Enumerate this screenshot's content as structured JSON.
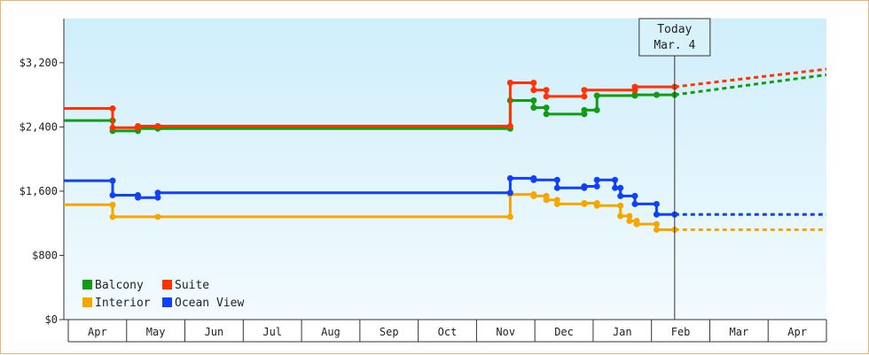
{
  "chart_data": {
    "type": "line",
    "y_ticks": [
      "$0",
      "$800",
      "$1,600",
      "$2,400",
      "$3,200"
    ],
    "y_tick_values": [
      0,
      800,
      1600,
      2400,
      3200
    ],
    "ylim": [
      0,
      3750
    ],
    "x_months": [
      "Apr",
      "May",
      "Jun",
      "Jul",
      "Aug",
      "Sep",
      "Oct",
      "Nov",
      "Dec",
      "Jan",
      "Feb",
      "Mar",
      "Apr"
    ],
    "xlim_days": [
      0,
      422
    ],
    "today": {
      "line1": "Today",
      "line2": "Mar. 4",
      "day": 338
    },
    "legend": [
      "Balcony",
      "Suite",
      "Interior",
      "Ocean View"
    ],
    "legend_position": "bottom-left",
    "colors": {
      "Balcony": "#129c12",
      "Suite": "#ff3300",
      "Interior": "#f5a700",
      "Ocean View": "#1040ff"
    },
    "series": [
      {
        "name": "Balcony",
        "points": [
          [
            0,
            2480
          ],
          [
            27,
            2480
          ],
          [
            27,
            2350
          ],
          [
            41,
            2350
          ],
          [
            41,
            2380
          ],
          [
            52,
            2380
          ],
          [
            247,
            2380
          ],
          [
            247,
            2730
          ],
          [
            260,
            2730
          ],
          [
            260,
            2640
          ],
          [
            267,
            2640
          ],
          [
            267,
            2560
          ],
          [
            288,
            2560
          ],
          [
            288,
            2610
          ],
          [
            295,
            2610
          ],
          [
            295,
            2790
          ],
          [
            316,
            2790
          ],
          [
            316,
            2800
          ],
          [
            328,
            2800
          ],
          [
            338,
            2800
          ]
        ],
        "forecast": [
          [
            338,
            2800
          ],
          [
            422,
            3050
          ]
        ]
      },
      {
        "name": "Suite",
        "points": [
          [
            0,
            2630
          ],
          [
            27,
            2630
          ],
          [
            27,
            2390
          ],
          [
            41,
            2390
          ],
          [
            41,
            2410
          ],
          [
            52,
            2410
          ],
          [
            247,
            2410
          ],
          [
            247,
            2950
          ],
          [
            260,
            2950
          ],
          [
            260,
            2860
          ],
          [
            267,
            2860
          ],
          [
            267,
            2780
          ],
          [
            288,
            2780
          ],
          [
            288,
            2860
          ],
          [
            316,
            2860
          ],
          [
            316,
            2900
          ],
          [
            338,
            2900
          ]
        ],
        "forecast": [
          [
            338,
            2900
          ],
          [
            422,
            3120
          ]
        ]
      },
      {
        "name": "Interior",
        "points": [
          [
            0,
            1430
          ],
          [
            27,
            1430
          ],
          [
            27,
            1280
          ],
          [
            52,
            1280
          ],
          [
            247,
            1280
          ],
          [
            247,
            1560
          ],
          [
            260,
            1560
          ],
          [
            260,
            1540
          ],
          [
            267,
            1540
          ],
          [
            267,
            1490
          ],
          [
            273,
            1490
          ],
          [
            273,
            1440
          ],
          [
            288,
            1440
          ],
          [
            288,
            1450
          ],
          [
            295,
            1450
          ],
          [
            295,
            1420
          ],
          [
            308,
            1420
          ],
          [
            308,
            1290
          ],
          [
            313,
            1290
          ],
          [
            313,
            1230
          ],
          [
            317,
            1230
          ],
          [
            317,
            1190
          ],
          [
            328,
            1190
          ],
          [
            328,
            1120
          ],
          [
            338,
            1120
          ]
        ],
        "forecast": [
          [
            338,
            1120
          ],
          [
            422,
            1120
          ]
        ]
      },
      {
        "name": "Ocean View",
        "points": [
          [
            0,
            1730
          ],
          [
            27,
            1730
          ],
          [
            27,
            1550
          ],
          [
            41,
            1550
          ],
          [
            41,
            1520
          ],
          [
            52,
            1520
          ],
          [
            52,
            1580
          ],
          [
            247,
            1580
          ],
          [
            247,
            1760
          ],
          [
            260,
            1760
          ],
          [
            260,
            1740
          ],
          [
            273,
            1740
          ],
          [
            273,
            1640
          ],
          [
            288,
            1640
          ],
          [
            288,
            1660
          ],
          [
            295,
            1660
          ],
          [
            295,
            1740
          ],
          [
            305,
            1740
          ],
          [
            305,
            1640
          ],
          [
            308,
            1640
          ],
          [
            308,
            1540
          ],
          [
            316,
            1540
          ],
          [
            316,
            1440
          ],
          [
            328,
            1440
          ],
          [
            328,
            1310
          ],
          [
            338,
            1310
          ]
        ],
        "forecast": [
          [
            338,
            1310
          ],
          [
            422,
            1310
          ]
        ]
      }
    ]
  }
}
